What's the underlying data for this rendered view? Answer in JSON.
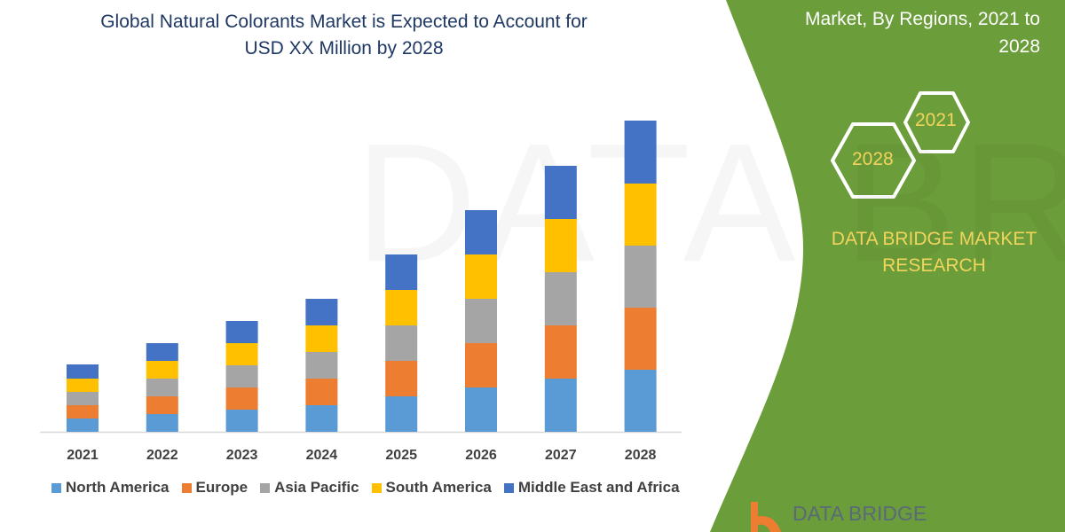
{
  "title_lines": [
    "Global Natural Colorants Market is Expected to Account for",
    "USD XX Million by 2028"
  ],
  "side_title_lines": [
    "Market, By Regions, 2021 to",
    "2028"
  ],
  "hex_labels": [
    "2021",
    "2028"
  ],
  "brand_lines": [
    "DATA BRIDGE MARKET",
    "RESEARCH"
  ],
  "logo_text": "DATA BRIDGE",
  "watermark_text": "DATA BRIDGE",
  "colors": {
    "accent_green": "#6b9d3a",
    "title": "#1f3864",
    "hex_text": "#f2d45c"
  },
  "chart_data": {
    "type": "bar",
    "stacked": true,
    "title": "Global Natural Colorants Market is Expected to Account for USD XX Million by 2028",
    "xlabel": "",
    "ylabel": "",
    "categories": [
      "2021",
      "2022",
      "2023",
      "2024",
      "2025",
      "2026",
      "2027",
      "2028"
    ],
    "ylim": [
      0,
      360
    ],
    "y_axis_labels_shown": false,
    "grid": false,
    "legend_position": "bottom",
    "series": [
      {
        "name": "North America",
        "color": "#5b9bd5",
        "values": [
          15,
          20,
          25,
          30,
          40,
          50,
          60,
          70
        ]
      },
      {
        "name": "Europe",
        "color": "#ed7d31",
        "values": [
          15,
          20,
          25,
          30,
          40,
          50,
          60,
          70
        ]
      },
      {
        "name": "Asia Pacific",
        "color": "#a5a5a5",
        "values": [
          15,
          20,
          25,
          30,
          40,
          50,
          60,
          70
        ]
      },
      {
        "name": "South America",
        "color": "#ffc000",
        "values": [
          15,
          20,
          25,
          30,
          40,
          50,
          60,
          70
        ]
      },
      {
        "name": "Middle East and Africa",
        "color": "#4472c4",
        "values": [
          16,
          20,
          25,
          30,
          40,
          50,
          60,
          71
        ]
      }
    ]
  }
}
